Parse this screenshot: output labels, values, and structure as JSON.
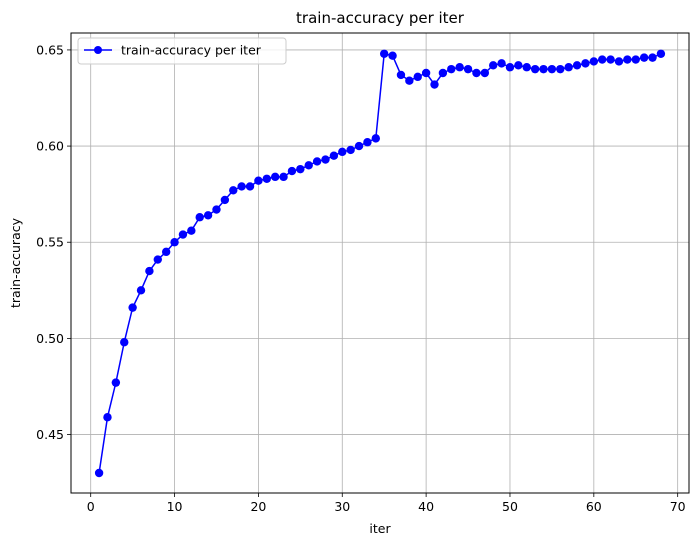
{
  "chart_data": {
    "type": "line",
    "title": "train-accuracy per iter",
    "xlabel": "iter",
    "ylabel": "train-accuracy",
    "xlim": [
      -2.35,
      71.35
    ],
    "ylim": [
      0.4196,
      0.6588
    ],
    "xticks": [
      0,
      10,
      20,
      30,
      40,
      50,
      60,
      70
    ],
    "yticks": [
      0.45,
      0.5,
      0.55,
      0.6,
      0.65
    ],
    "ytick_labels": [
      "0.45",
      "0.50",
      "0.55",
      "0.60",
      "0.65"
    ],
    "grid": true,
    "legend_placement": "upper-left",
    "series": [
      {
        "name": "train-accuracy per iter",
        "color": "#0000ff",
        "marker": "circle",
        "x": [
          1,
          2,
          3,
          4,
          5,
          6,
          7,
          8,
          9,
          10,
          11,
          12,
          13,
          14,
          15,
          16,
          17,
          18,
          19,
          20,
          21,
          22,
          23,
          24,
          25,
          26,
          27,
          28,
          29,
          30,
          31,
          32,
          33,
          34,
          35,
          36,
          37,
          38,
          39,
          40,
          41,
          42,
          43,
          44,
          45,
          46,
          47,
          48,
          49,
          50,
          51,
          52,
          53,
          54,
          55,
          56,
          57,
          58,
          59,
          60,
          61,
          62,
          63,
          64,
          65,
          66,
          67,
          68
        ],
        "y": [
          0.43,
          0.459,
          0.477,
          0.498,
          0.516,
          0.525,
          0.535,
          0.541,
          0.545,
          0.55,
          0.554,
          0.556,
          0.563,
          0.564,
          0.567,
          0.572,
          0.577,
          0.579,
          0.579,
          0.582,
          0.583,
          0.584,
          0.584,
          0.587,
          0.588,
          0.59,
          0.592,
          0.593,
          0.595,
          0.597,
          0.598,
          0.6,
          0.602,
          0.604,
          0.648,
          0.647,
          0.637,
          0.634,
          0.636,
          0.638,
          0.632,
          0.638,
          0.64,
          0.641,
          0.64,
          0.638,
          0.638,
          0.642,
          0.643,
          0.641,
          0.642,
          0.641,
          0.64,
          0.64,
          0.64,
          0.64,
          0.641,
          0.642,
          0.643,
          0.644,
          0.645,
          0.645,
          0.644,
          0.645,
          0.645,
          0.646,
          0.646,
          0.648
        ]
      }
    ]
  }
}
